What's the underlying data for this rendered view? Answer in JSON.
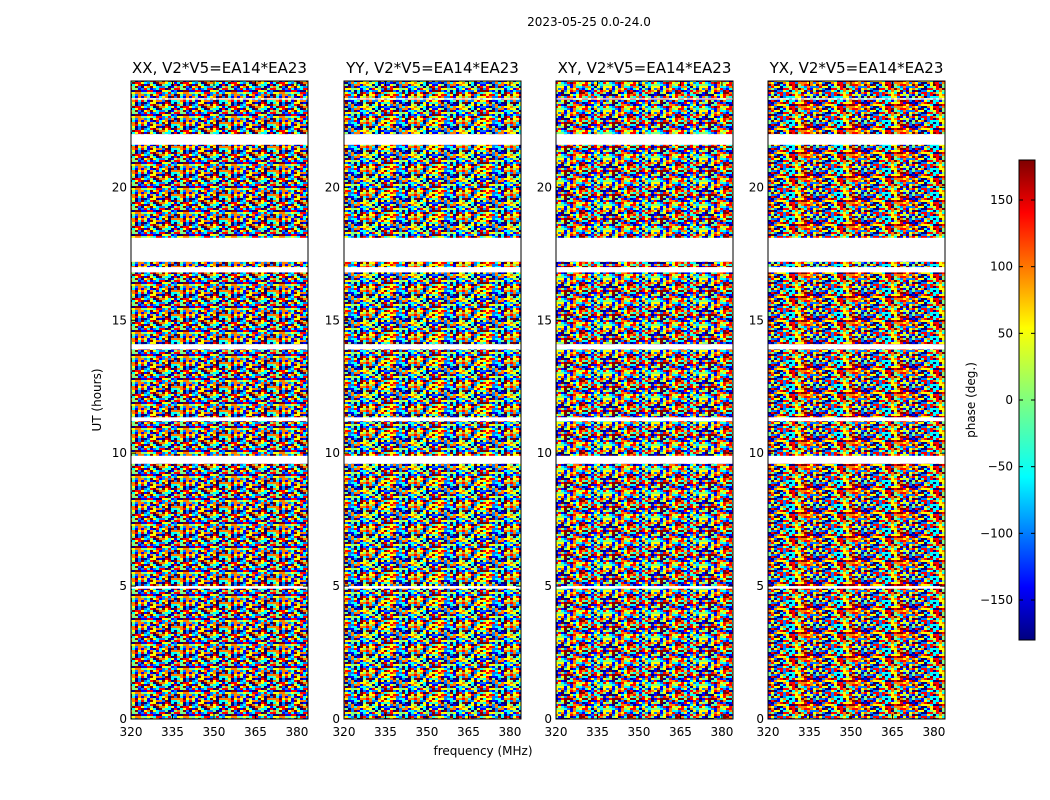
{
  "chart_data": {
    "type": "heatmap",
    "suptitle": "2023-05-25 0.0-24.0",
    "xlabel": "frequency (MHz)",
    "ylabel": "UT (hours)",
    "xlim": [
      320,
      384
    ],
    "ylim": [
      0,
      24
    ],
    "xticks": [
      320,
      335,
      350,
      365,
      380
    ],
    "yticks": [
      0,
      5,
      10,
      15,
      20
    ],
    "colorbar": {
      "label": "phase (deg.)",
      "range": [
        -180,
        180
      ],
      "ticks": [
        -150,
        -100,
        -50,
        0,
        50,
        100,
        150
      ],
      "tick_labels": [
        "−150",
        "−100",
        "−50",
        "0",
        "50",
        "100",
        "150"
      ],
      "colormap": "jet",
      "colors": [
        "#00007f",
        "#0000ff",
        "#007fff",
        "#00ffff",
        "#7fff7f",
        "#ffff00",
        "#ff7f00",
        "#ff0000",
        "#7f0000"
      ]
    },
    "panels": [
      {
        "title": "XX, V2*V5=EA14*EA23",
        "polarization": "XX"
      },
      {
        "title": "YY, V2*V5=EA14*EA23",
        "polarization": "YY"
      },
      {
        "title": "XY, V2*V5=EA14*EA23",
        "polarization": "XY"
      },
      {
        "title": "YX, V2*V5=EA14*EA23",
        "polarization": "YX"
      }
    ],
    "flagged_ut_ranges": [
      [
        4.9,
        5.0
      ],
      [
        9.6,
        9.9
      ],
      [
        11.2,
        11.35
      ],
      [
        13.9,
        14.1
      ],
      [
        16.8,
        17.0
      ],
      [
        17.2,
        18.1
      ],
      [
        21.6,
        22.0
      ],
      [
        23.3,
        23.35
      ]
    ]
  }
}
